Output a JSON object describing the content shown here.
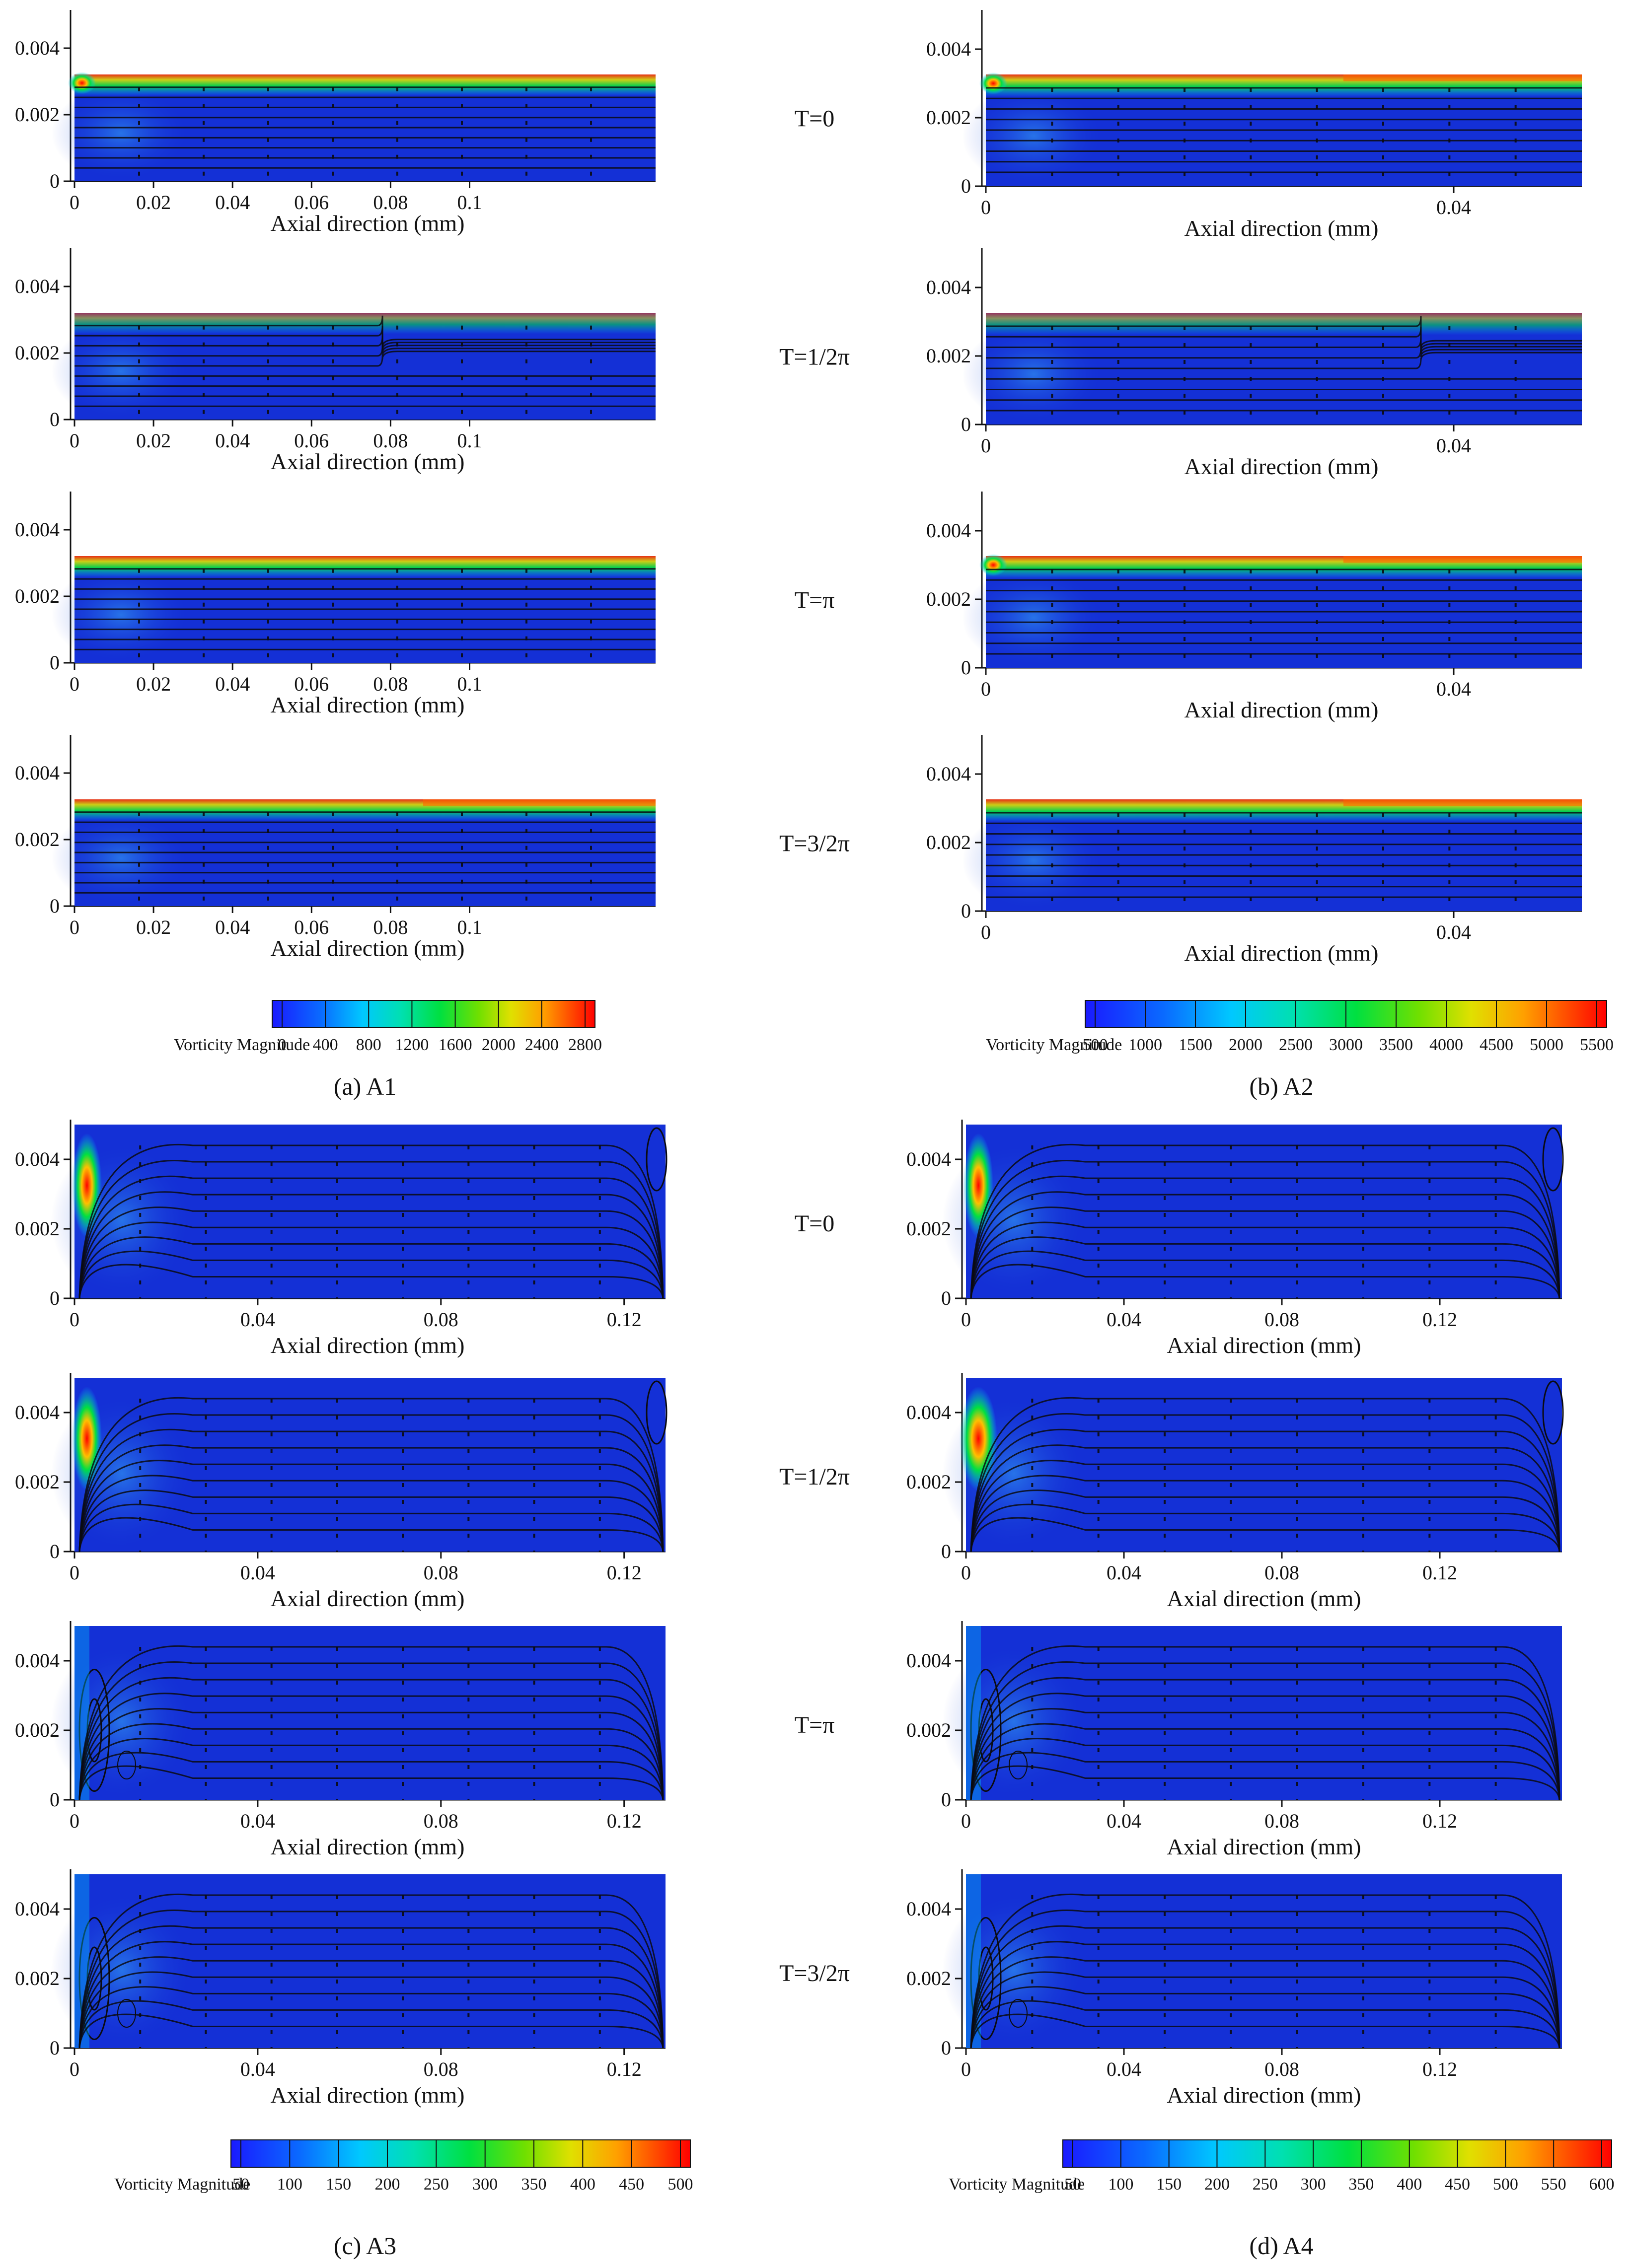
{
  "figure": {
    "time_labels": [
      "T=0",
      "T=1/2π",
      "T=π",
      "T=3/2π"
    ],
    "panel_groups": [
      {
        "caption": "(a) A1",
        "x_axis_title": "Axial direction (mm)",
        "x_ticks": [
          "0",
          "0.02",
          "0.04",
          "0.06",
          "0.08",
          "0.1"
        ],
        "y_ticks": [
          "0",
          "0.002",
          "0.004"
        ],
        "colorbar_title": "Vorticity Magnitude",
        "colorbar_ticks": [
          "0",
          "400",
          "800",
          "1200",
          "1600",
          "2000",
          "2400",
          "2800"
        ]
      },
      {
        "caption": "(b) A2",
        "x_axis_title": "Axial direction (mm)",
        "x_ticks": [
          "0",
          "0.04"
        ],
        "y_ticks": [
          "0",
          "0.002",
          "0.004"
        ],
        "colorbar_title": "Vorticity Magnitude",
        "colorbar_ticks": [
          "500",
          "1000",
          "1500",
          "2000",
          "2500",
          "3000",
          "3500",
          "4000",
          "4500",
          "5000",
          "5500"
        ]
      },
      {
        "caption": "(c) A3",
        "x_axis_title": "Axial direction (mm)",
        "x_ticks": [
          "0",
          "0.04",
          "0.08",
          "0.12"
        ],
        "y_ticks": [
          "0",
          "0.002",
          "0.004"
        ],
        "colorbar_title": "Vorticity Magnitude",
        "colorbar_ticks": [
          "50",
          "100",
          "150",
          "200",
          "250",
          "300",
          "350",
          "400",
          "450",
          "500"
        ]
      },
      {
        "caption": "(d) A4",
        "x_axis_title": "Axial direction (mm)",
        "x_ticks": [
          "0",
          "0.04",
          "0.08",
          "0.12"
        ],
        "y_ticks": [
          "0",
          "0.002",
          "0.004"
        ],
        "colorbar_title": "Vorticity Magnitude",
        "colorbar_ticks": [
          "50",
          "100",
          "150",
          "200",
          "250",
          "300",
          "350",
          "400",
          "450",
          "500",
          "550",
          "600"
        ]
      }
    ],
    "colors": {
      "field": "#1430d6",
      "streamline": "#0b0b10",
      "colormap": [
        "#1a1aff",
        "#0a6aff",
        "#00c8ff",
        "#00e0b0",
        "#00e040",
        "#70e000",
        "#e0e000",
        "#ffa000",
        "#ff5000",
        "#ff0000"
      ]
    }
  }
}
